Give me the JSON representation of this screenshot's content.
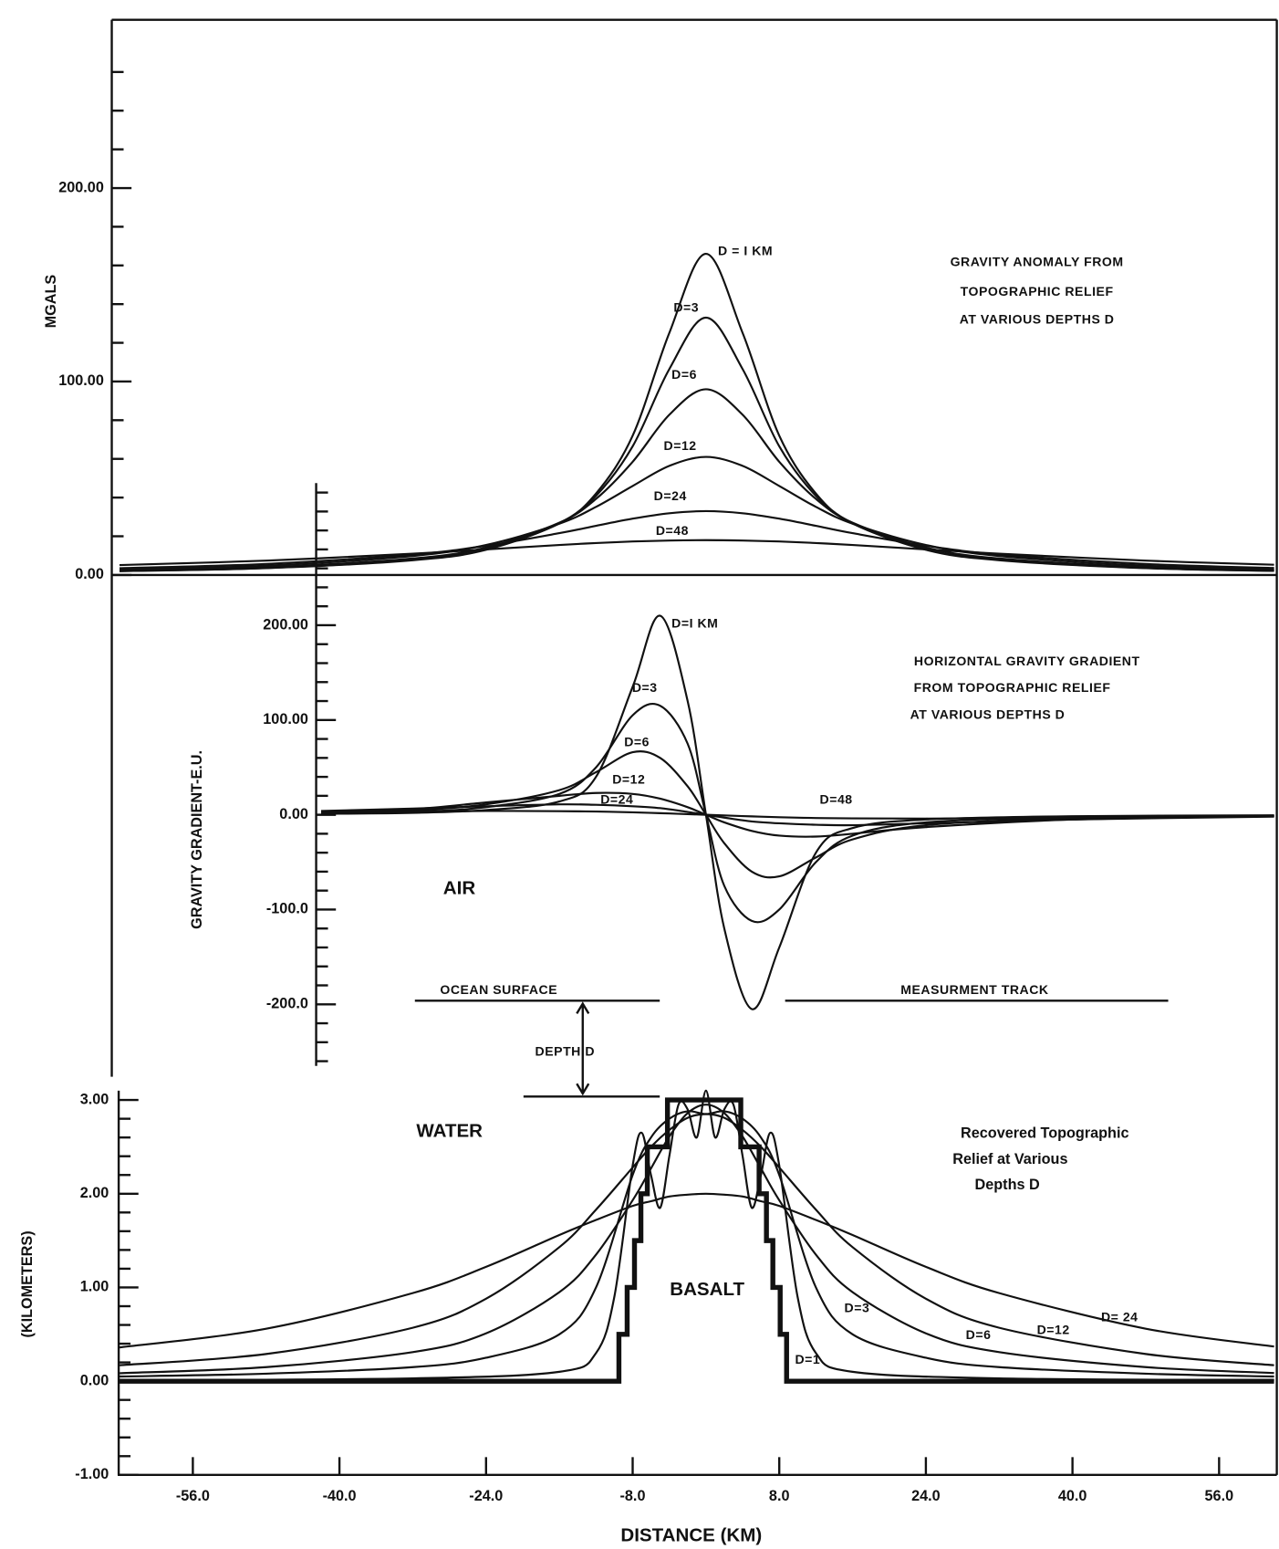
{
  "chart_data": [
    {
      "type": "line",
      "ylabel": "MGALS",
      "annotations": [
        "GRAVITY ANOMALY FROM",
        "TOPOGRAPHIC RELIEF",
        "AT VARIOUS DEPTHS D"
      ],
      "xlim": [
        -64.2,
        62.3
      ],
      "ylim": [
        0,
        287
      ],
      "yticks": [
        {
          "value": 0,
          "label": "0.00"
        },
        {
          "value": 100,
          "label": "100.00"
        },
        {
          "value": 200,
          "label": "200.00"
        }
      ],
      "minor_yticks": [
        20,
        40,
        60,
        80,
        120,
        140,
        160,
        180,
        220,
        240,
        260
      ],
      "x": [
        -64,
        -48,
        -32,
        -24,
        -16,
        -12,
        -8,
        -4,
        0,
        4,
        8,
        12,
        16,
        24,
        32,
        48,
        62
      ],
      "series": [
        {
          "name": "D = I KM",
          "color": "#111111",
          "values": [
            2.0,
            3.5,
            7.6,
            13.0,
            26.7,
            42.1,
            72.0,
            125.1,
            166,
            125.1,
            72.0,
            42.1,
            26.7,
            13.0,
            7.6,
            3.5,
            2.1
          ]
        },
        {
          "name": "D=3",
          "color": "#111111",
          "values": [
            2.0,
            3.6,
            7.8,
            13.3,
            26.6,
            40.9,
            66.5,
            106.4,
            133,
            106.4,
            66.5,
            40.9,
            26.6,
            13.3,
            7.8,
            3.6,
            2.2
          ]
        },
        {
          "name": "D=6",
          "color": "#111111",
          "values": [
            2.3,
            4.0,
            8.5,
            14.2,
            27.0,
            39.3,
            58.5,
            82.8,
            96,
            82.8,
            58.5,
            39.3,
            27.0,
            14.2,
            8.5,
            4.0,
            2.4
          ]
        },
        {
          "name": "D=12",
          "color": "#111111",
          "values": [
            2.8,
            4.8,
            9.8,
            15.5,
            26.5,
            35.2,
            46.0,
            56.4,
            61,
            56.4,
            46.0,
            35.2,
            26.5,
            15.5,
            9.8,
            4.8,
            3.0
          ]
        },
        {
          "name": "D=24",
          "color": "#111111",
          "values": [
            3.5,
            5.7,
            10.6,
            15.1,
            21.6,
            25.4,
            29.1,
            31.9,
            33,
            31.9,
            29.1,
            25.4,
            21.6,
            15.1,
            10.6,
            5.7,
            3.6
          ]
        },
        {
          "name": "D=48",
          "color": "#111111",
          "values": [
            5.1,
            7.4,
            11.0,
            13.2,
            15.5,
            16.5,
            17.3,
            17.8,
            18,
            17.8,
            17.3,
            16.5,
            15.5,
            13.2,
            11.0,
            7.4,
            5.3
          ]
        }
      ]
    },
    {
      "type": "line",
      "ylabel": "GRAVITY GRADIENT-E.U.",
      "annotations": [
        "HORIZONTAL GRAVITY GRADIENT",
        "FROM TOPOGRAPHIC RELIEF",
        "AT VARIOUS DEPTHS D",
        "AIR"
      ],
      "xlim": [
        -64.2,
        62.3
      ],
      "ylim": [
        -265,
        350
      ],
      "yticks": [
        {
          "value": -200,
          "label": "-200.0"
        },
        {
          "value": -100,
          "label": "-100.0"
        },
        {
          "value": 0,
          "label": "0.00"
        },
        {
          "value": 100,
          "label": "100.00"
        },
        {
          "value": 200,
          "label": "200.00"
        }
      ],
      "minor_yticks": [
        -260,
        -240,
        -220,
        -180,
        -160,
        -140,
        -120,
        -80,
        -60,
        -40,
        -20,
        20,
        40,
        60,
        80,
        120,
        140,
        160,
        180,
        220,
        240,
        260,
        280,
        300,
        320,
        340
      ],
      "x": [
        -42,
        -32,
        -24,
        -16,
        -12,
        -8,
        -5,
        -2,
        0,
        2,
        5,
        8,
        12,
        16,
        24,
        40,
        62
      ],
      "series": [
        {
          "name": "D=I KM",
          "color": "#111111",
          "values": [
            1,
            2,
            5,
            14,
            40,
            135,
            210,
            120,
            0,
            -120,
            -205,
            -140,
            -40,
            -14,
            -5,
            -1.5,
            -0.5
          ]
        },
        {
          "name": "D=3",
          "color": "#111111",
          "values": [
            1.5,
            3,
            8,
            22,
            50,
            105,
            115,
            75,
            0,
            -75,
            -112,
            -100,
            -50,
            -22,
            -8,
            -2.5,
            -0.8
          ]
        },
        {
          "name": "D=6",
          "color": "#111111",
          "values": [
            2,
            4.5,
            11,
            26,
            45,
            66,
            60,
            30,
            0,
            -30,
            -60,
            -65,
            -45,
            -26,
            -11,
            -3.5,
            -1
          ]
        },
        {
          "name": "D=12",
          "color": "#111111",
          "values": [
            3,
            6,
            13,
            20,
            23,
            22,
            17,
            8,
            0,
            -8,
            -17,
            -22,
            -23,
            -20,
            -13,
            -5,
            -1.5
          ]
        },
        {
          "name": "D=24",
          "color": "#111111",
          "values": [
            4,
            6.5,
            9,
            11,
            10.5,
            9,
            7,
            3,
            0,
            -3,
            -7,
            -9,
            -10.5,
            -11,
            -9,
            -5,
            -2
          ]
        },
        {
          "name": "D=48",
          "color": "#111111",
          "values": [
            2.5,
            3.3,
            4,
            3.8,
            3.4,
            2.6,
            1.7,
            0.7,
            0,
            -0.7,
            -1.7,
            -2.6,
            -3.4,
            -3.8,
            -4,
            -3,
            -1.5
          ]
        }
      ]
    },
    {
      "type": "line",
      "ylabel": "(KILOMETERS)",
      "xlabel": "DISTANCE (KM)",
      "annotations": [
        "OCEAN SURFACE",
        "MEASURMENT TRACK",
        "DEPTH D",
        "WATER",
        "BASALT",
        "Recovered Topographic",
        "Relief at Various",
        "Depths D"
      ],
      "xlim": [
        -64.2,
        62.3
      ],
      "ylim": [
        -1,
        3.1
      ],
      "xticks": [
        {
          "value": -56,
          "label": "-56.0"
        },
        {
          "value": -40,
          "label": "-40.0"
        },
        {
          "value": -24,
          "label": "-24.0"
        },
        {
          "value": -8,
          "label": "-8.0"
        },
        {
          "value": 8,
          "label": "8.0"
        },
        {
          "value": 24,
          "label": "24.0"
        },
        {
          "value": 40,
          "label": "40.0"
        },
        {
          "value": 56,
          "label": "56.0"
        }
      ],
      "yticks": [
        {
          "value": -1,
          "label": "-1.00"
        },
        {
          "value": 0,
          "label": "0.00"
        },
        {
          "value": 1,
          "label": "1.00"
        },
        {
          "value": 2,
          "label": "2.00"
        },
        {
          "value": 3,
          "label": "3.00"
        }
      ],
      "minor_yticks": [
        -0.8,
        -0.6,
        -0.4,
        -0.2,
        0.2,
        0.4,
        0.6,
        0.8,
        1.2,
        1.4,
        1.6,
        1.8,
        2.2,
        2.4,
        2.6,
        2.8
      ],
      "x": [
        -64,
        -48,
        -32,
        -24,
        -16,
        -12,
        -8,
        -6,
        -4,
        -2,
        0,
        2,
        4,
        6,
        8,
        12,
        16,
        24,
        32,
        48,
        62
      ],
      "series": [
        {
          "color": "#111111",
          "line_style": "bold",
          "x": [
            -64,
            -9.5,
            -9.5,
            -8.6,
            -8.6,
            -7.8,
            -7.8,
            -7.1,
            -7.1,
            -6.4,
            -6.4,
            -4.2,
            -4.2,
            3.8,
            3.8,
            5.8,
            5.8,
            6.6,
            6.6,
            7.3,
            7.3,
            8.1,
            8.1,
            8.8,
            8.8,
            62
          ],
          "values": [
            0,
            0,
            0.5,
            0.5,
            1.0,
            1.0,
            1.5,
            1.5,
            2.0,
            2.0,
            2.5,
            2.5,
            3.0,
            3.0,
            2.5,
            2.5,
            2.0,
            2.0,
            1.5,
            1.5,
            1.0,
            1.0,
            0.5,
            0.5,
            0,
            0
          ]
        },
        {
          "name": "D=1",
          "color": "#111111",
          "x": [
            -64,
            -32,
            -16,
            -12,
            -10,
            -8,
            -7,
            -6,
            -5,
            -4,
            -3,
            -2,
            -1,
            0,
            1,
            2,
            3,
            4,
            5,
            6,
            7,
            8,
            10,
            12,
            16,
            32,
            62
          ],
          "values": [
            0.01,
            0.03,
            0.1,
            0.3,
            0.9,
            2.3,
            2.65,
            2.2,
            1.85,
            2.4,
            2.95,
            2.9,
            2.6,
            3.1,
            2.6,
            2.9,
            2.95,
            2.4,
            1.85,
            2.2,
            2.65,
            2.3,
            0.9,
            0.3,
            0.1,
            0.03,
            0.01
          ]
        },
        {
          "name": "D=3",
          "color": "#111111",
          "values": [
            0.05,
            0.08,
            0.15,
            0.25,
            0.5,
            1.0,
            2.2,
            2.6,
            2.8,
            2.88,
            2.85,
            2.88,
            2.8,
            2.6,
            2.2,
            1.0,
            0.5,
            0.25,
            0.15,
            0.08,
            0.05
          ]
        },
        {
          "name": "D=6",
          "color": "#111111",
          "values": [
            0.085,
            0.15,
            0.31,
            0.51,
            0.95,
            1.35,
            1.93,
            2.27,
            2.61,
            2.86,
            2.95,
            2.86,
            2.61,
            2.27,
            1.93,
            1.35,
            0.95,
            0.51,
            0.31,
            0.15,
            0.087
          ]
        },
        {
          "name": "D=12",
          "color": "#111111",
          "values": [
            0.17,
            0.29,
            0.57,
            0.88,
            1.43,
            1.83,
            2.28,
            2.5,
            2.68,
            2.81,
            2.85,
            2.81,
            2.68,
            2.5,
            2.28,
            1.83,
            1.43,
            0.88,
            0.57,
            0.29,
            0.17
          ]
        },
        {
          "name": "D= 24",
          "color": "#111111",
          "values": [
            0.36,
            0.56,
            0.94,
            1.22,
            1.56,
            1.72,
            1.87,
            1.92,
            1.97,
            1.99,
            2.0,
            1.99,
            1.97,
            1.92,
            1.87,
            1.72,
            1.56,
            1.22,
            0.94,
            0.56,
            0.37
          ]
        }
      ]
    }
  ]
}
